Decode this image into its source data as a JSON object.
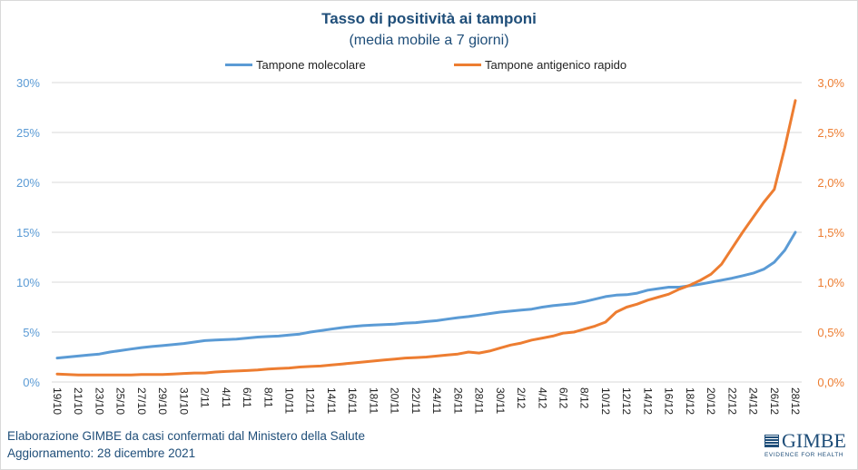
{
  "chart_data": {
    "type": "line",
    "title": "Tasso di positività ai tamponi",
    "subtitle": "(media mobile a 7 giorni)",
    "xlabel": "",
    "ylabel_left": "",
    "ylabel_right": "",
    "legend_position": "top",
    "grid": true,
    "y_left": {
      "min": 0,
      "max": 30,
      "ticks": [
        0,
        5,
        10,
        15,
        20,
        25,
        30
      ],
      "tick_labels": [
        "0%",
        "5%",
        "10%",
        "15%",
        "20%",
        "25%",
        "30%"
      ],
      "color": "#5b9bd5"
    },
    "y_right": {
      "min": 0,
      "max": 3.0,
      "ticks": [
        0,
        0.5,
        1.0,
        1.5,
        2.0,
        2.5,
        3.0
      ],
      "tick_labels": [
        "0,0%",
        "0,5%",
        "1,0%",
        "1,5%",
        "2,0%",
        "2,5%",
        "3,0%"
      ],
      "color": "#ed7d31"
    },
    "x": [
      "19/10",
      "20/10",
      "21/10",
      "22/10",
      "23/10",
      "24/10",
      "25/10",
      "26/10",
      "27/10",
      "28/10",
      "29/10",
      "30/10",
      "31/10",
      "1/11",
      "2/11",
      "3/11",
      "4/11",
      "5/11",
      "6/11",
      "7/11",
      "8/11",
      "9/11",
      "10/11",
      "11/11",
      "12/11",
      "13/11",
      "14/11",
      "15/11",
      "16/11",
      "17/11",
      "18/11",
      "19/11",
      "20/11",
      "21/11",
      "22/11",
      "23/11",
      "24/11",
      "25/11",
      "26/11",
      "27/11",
      "28/11",
      "29/11",
      "30/11",
      "1/12",
      "2/12",
      "3/12",
      "4/12",
      "5/12",
      "6/12",
      "7/12",
      "8/12",
      "9/12",
      "10/12",
      "11/12",
      "12/12",
      "13/12",
      "14/12",
      "15/12",
      "16/12",
      "17/12",
      "18/12",
      "19/12",
      "20/12",
      "21/12",
      "22/12",
      "23/12",
      "24/12",
      "25/12",
      "26/12",
      "27/12",
      "28/12"
    ],
    "x_tick_labels": [
      "19/10",
      "21/10",
      "23/10",
      "25/10",
      "27/10",
      "29/10",
      "31/10",
      "2/11",
      "4/11",
      "6/11",
      "8/11",
      "10/11",
      "12/11",
      "14/11",
      "16/11",
      "18/11",
      "20/11",
      "22/11",
      "24/11",
      "26/11",
      "28/11",
      "30/11",
      "2/12",
      "4/12",
      "6/12",
      "8/12",
      "10/12",
      "12/12",
      "14/12",
      "16/12",
      "18/12",
      "20/12",
      "22/12",
      "24/12",
      "26/12",
      "28/12"
    ],
    "series": [
      {
        "name": "Tampone molecolare",
        "axis": "left",
        "color": "#5b9bd5",
        "values": [
          2.4,
          2.5,
          2.6,
          2.7,
          2.8,
          3.0,
          3.15,
          3.3,
          3.45,
          3.55,
          3.65,
          3.75,
          3.85,
          4.0,
          4.15,
          4.2,
          4.25,
          4.3,
          4.4,
          4.5,
          4.55,
          4.6,
          4.7,
          4.8,
          5.0,
          5.15,
          5.3,
          5.45,
          5.55,
          5.65,
          5.7,
          5.75,
          5.8,
          5.9,
          5.95,
          6.05,
          6.15,
          6.3,
          6.45,
          6.55,
          6.7,
          6.85,
          7.0,
          7.1,
          7.2,
          7.3,
          7.5,
          7.65,
          7.75,
          7.85,
          8.05,
          8.3,
          8.55,
          8.7,
          8.75,
          8.9,
          9.2,
          9.35,
          9.5,
          9.5,
          9.65,
          9.8,
          10.0,
          10.2,
          10.4,
          10.65,
          10.9,
          11.3,
          12.0,
          13.2,
          15.0
        ]
      },
      {
        "name": "Tampone antigenico rapido",
        "axis": "right",
        "color": "#ed7d31",
        "values": [
          0.08,
          0.075,
          0.07,
          0.07,
          0.07,
          0.07,
          0.07,
          0.07,
          0.075,
          0.075,
          0.075,
          0.08,
          0.085,
          0.09,
          0.09,
          0.1,
          0.105,
          0.11,
          0.115,
          0.12,
          0.13,
          0.135,
          0.14,
          0.15,
          0.155,
          0.16,
          0.17,
          0.18,
          0.19,
          0.2,
          0.21,
          0.22,
          0.23,
          0.24,
          0.245,
          0.25,
          0.26,
          0.27,
          0.28,
          0.3,
          0.29,
          0.31,
          0.34,
          0.37,
          0.39,
          0.42,
          0.44,
          0.46,
          0.49,
          0.5,
          0.53,
          0.56,
          0.6,
          0.7,
          0.75,
          0.78,
          0.82,
          0.85,
          0.88,
          0.93,
          0.97,
          1.02,
          1.08,
          1.18,
          1.34,
          1.5,
          1.65,
          1.8,
          1.93,
          2.35,
          2.82
        ]
      }
    ]
  },
  "footer": {
    "source": "Elaborazione GIMBE da casi confermati dal Ministero della Salute",
    "updated": "Aggiornamento: 28 dicembre 2021"
  },
  "logo": {
    "name": "GIMBE",
    "tagline": "EVIDENCE FOR HEALTH"
  }
}
